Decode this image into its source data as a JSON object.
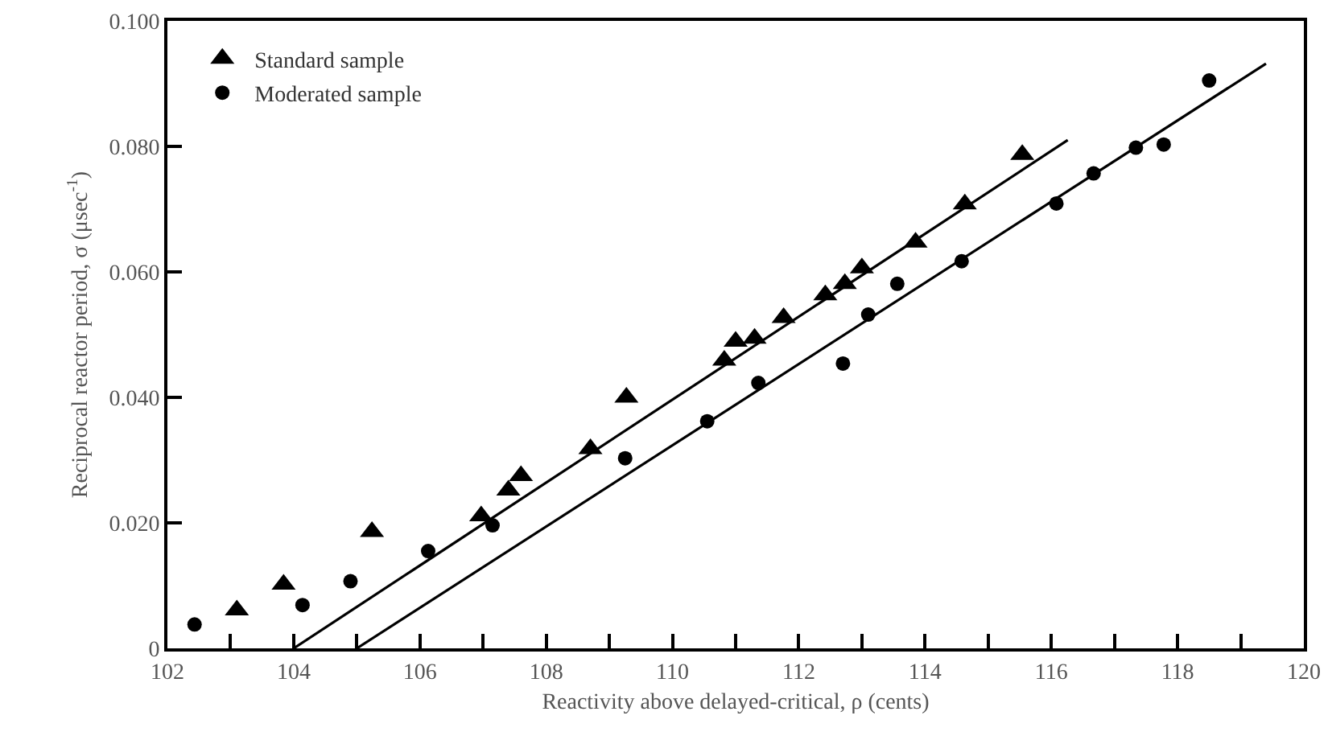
{
  "chart_data": {
    "type": "scatter",
    "xlabel": "Reactivity above delayed-critical, ρ (cents)",
    "ylabel": "Reciprocal reactor period, σ (μsec$^{-1}$)",
    "xlim": [
      102,
      120
    ],
    "ylim": [
      0,
      0.1
    ],
    "xticks": [
      102,
      {
        "value": 103,
        "label": null
      },
      104,
      {
        "value": 105,
        "label": null
      },
      106,
      {
        "value": 107,
        "label": null
      },
      108,
      {
        "value": 109,
        "label": null
      },
      110,
      {
        "value": 111,
        "label": null
      },
      112,
      {
        "value": 113,
        "label": null
      },
      114,
      {
        "value": 115,
        "label": null
      },
      116,
      {
        "value": 117,
        "label": null
      },
      118,
      {
        "value": 119,
        "label": null
      },
      120
    ],
    "yticks": [
      0,
      {
        "value": 0.02,
        "label": "0.020"
      },
      {
        "value": 0.04,
        "label": "0.040"
      },
      {
        "value": 0.06,
        "label": "0.060"
      },
      {
        "value": 0.08,
        "label": "0.080"
      },
      {
        "value": 0.1,
        "label": "0.100"
      }
    ],
    "grid": false,
    "legend": "top left",
    "series": [
      {
        "name": "Standard sample",
        "marker": "triangle",
        "color": "#000000",
        "x": [
          103.1,
          103.84,
          105.24,
          106.97,
          107.4,
          107.6,
          108.7,
          109.27,
          110.82,
          111.0,
          111.3,
          111.76,
          112.42,
          112.73,
          113.0,
          113.85,
          114.63,
          115.54
        ],
        "values": [
          0.0061,
          0.0102,
          0.0186,
          0.0211,
          0.0252,
          0.0275,
          0.0318,
          0.04,
          0.0459,
          0.0489,
          0.0494,
          0.0527,
          0.0563,
          0.0581,
          0.0606,
          0.0647,
          0.0708,
          0.0787
        ]
      },
      {
        "name": "Moderated sample",
        "marker": "circle",
        "color": "#000000",
        "x": [
          102.43,
          104.14,
          104.9,
          106.13,
          107.15,
          109.25,
          110.55,
          111.36,
          112.7,
          113.1,
          113.56,
          114.58,
          116.08,
          116.67,
          117.34,
          117.78,
          118.5
        ],
        "values": [
          0.0038,
          0.0069,
          0.0107,
          0.0155,
          0.0196,
          0.0303,
          0.0362,
          0.0423,
          0.0454,
          0.0532,
          0.0581,
          0.0617,
          0.0709,
          0.0757,
          0.0798,
          0.0803,
          0.0905
        ]
      },
      {
        "type": "line",
        "marker": "none",
        "line_style": "solid",
        "color": "#000000",
        "x": [
          104.0,
          116.26
        ],
        "values": [
          0,
          0.081
        ]
      },
      {
        "type": "line",
        "marker": "none",
        "line_style": "solid",
        "color": "#000000",
        "x": [
          105.0,
          119.4
        ],
        "values": [
          0,
          0.0932
        ]
      }
    ]
  }
}
